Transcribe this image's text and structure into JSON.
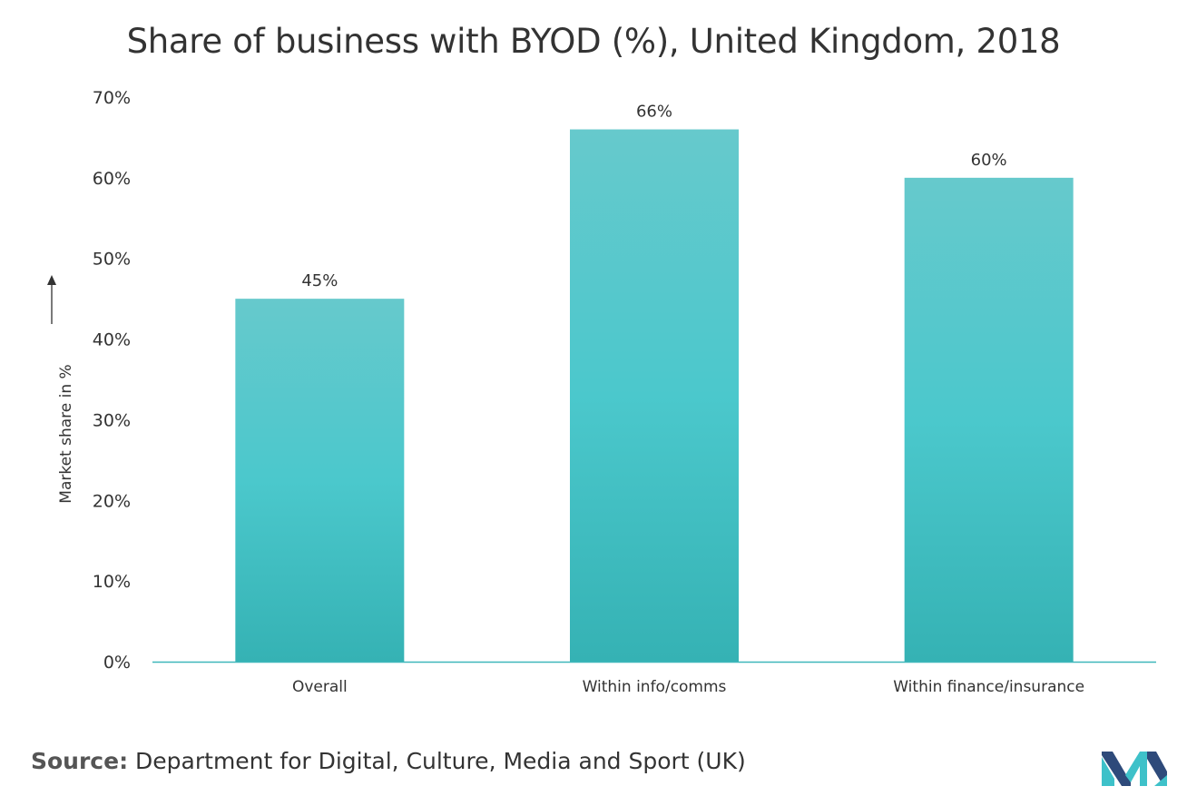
{
  "chart_data": {
    "type": "bar",
    "title": "Share of business with BYOD (%), United Kingdom, 2018",
    "xlabel": "",
    "ylabel": "Market share in %",
    "categories": [
      "Overall",
      "Within info/comms",
      "Within finance/insurance"
    ],
    "values": [
      45,
      66,
      60
    ],
    "data_labels": [
      "45%",
      "66%",
      "60%"
    ],
    "ylim": [
      0,
      70
    ],
    "yticks": [
      "0%",
      "10%",
      "20%",
      "30%",
      "40%",
      "50%",
      "60%",
      "70%"
    ],
    "grid": false,
    "legend": "none",
    "bar_color_top": "#66c9cc",
    "bar_color_mid": "#4bc8cc",
    "bar_color_bottom": "#35b2b4",
    "axis_color": "#3fb7bb"
  },
  "source": {
    "prefix": "Source:",
    "text": " Department for Digital, Culture, Media and Sport (UK)"
  },
  "logo": {
    "icon": "mordor-intelligence-logo",
    "colors": [
      "#2e4a7a",
      "#3ec1c9"
    ]
  }
}
